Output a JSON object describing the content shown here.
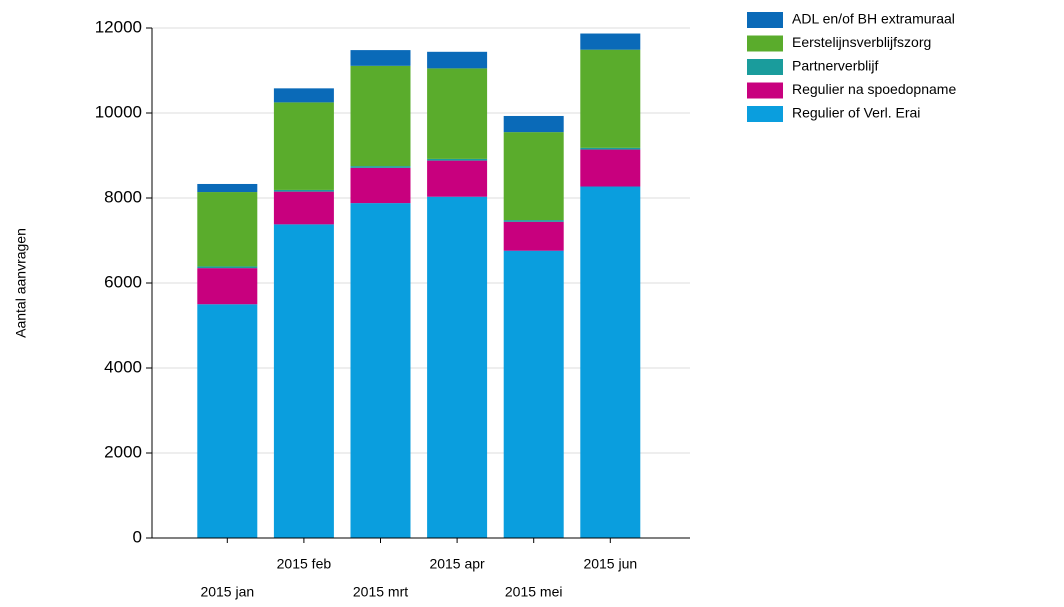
{
  "chart_data": {
    "type": "stacked_bar",
    "y_label": "Aantal aanvragen",
    "categories": [
      "2015 jan",
      "2015 feb",
      "2015 mrt",
      "2015 apr",
      "2015 mei",
      "2015 jun"
    ],
    "series": [
      {
        "name": "Regulier of Verl. Erai",
        "color": "#0a9ede",
        "values": [
          5500,
          7380,
          7880,
          8030,
          6760,
          8270
        ]
      },
      {
        "name": "Regulier na spoedopname",
        "color": "#c8007e",
        "values": [
          850,
          770,
          830,
          850,
          680,
          870
        ]
      },
      {
        "name": "Partnerverblijf",
        "color": "#1a9c9c",
        "values": [
          40,
          40,
          40,
          40,
          40,
          40
        ]
      },
      {
        "name": "Eerstelijnsverblijfszorg",
        "color": "#5aac2c",
        "values": [
          1750,
          2060,
          2360,
          2130,
          2070,
          2310
        ]
      },
      {
        "name": "ADL en/of BH extramuraal",
        "color": "#0a6ab8",
        "values": [
          190,
          330,
          370,
          390,
          380,
          380
        ]
      }
    ],
    "ylim": [
      0,
      12000
    ],
    "yticks": [
      0,
      2000,
      4000,
      6000,
      8000,
      10000,
      12000
    ],
    "grid": true,
    "legend": "right"
  }
}
